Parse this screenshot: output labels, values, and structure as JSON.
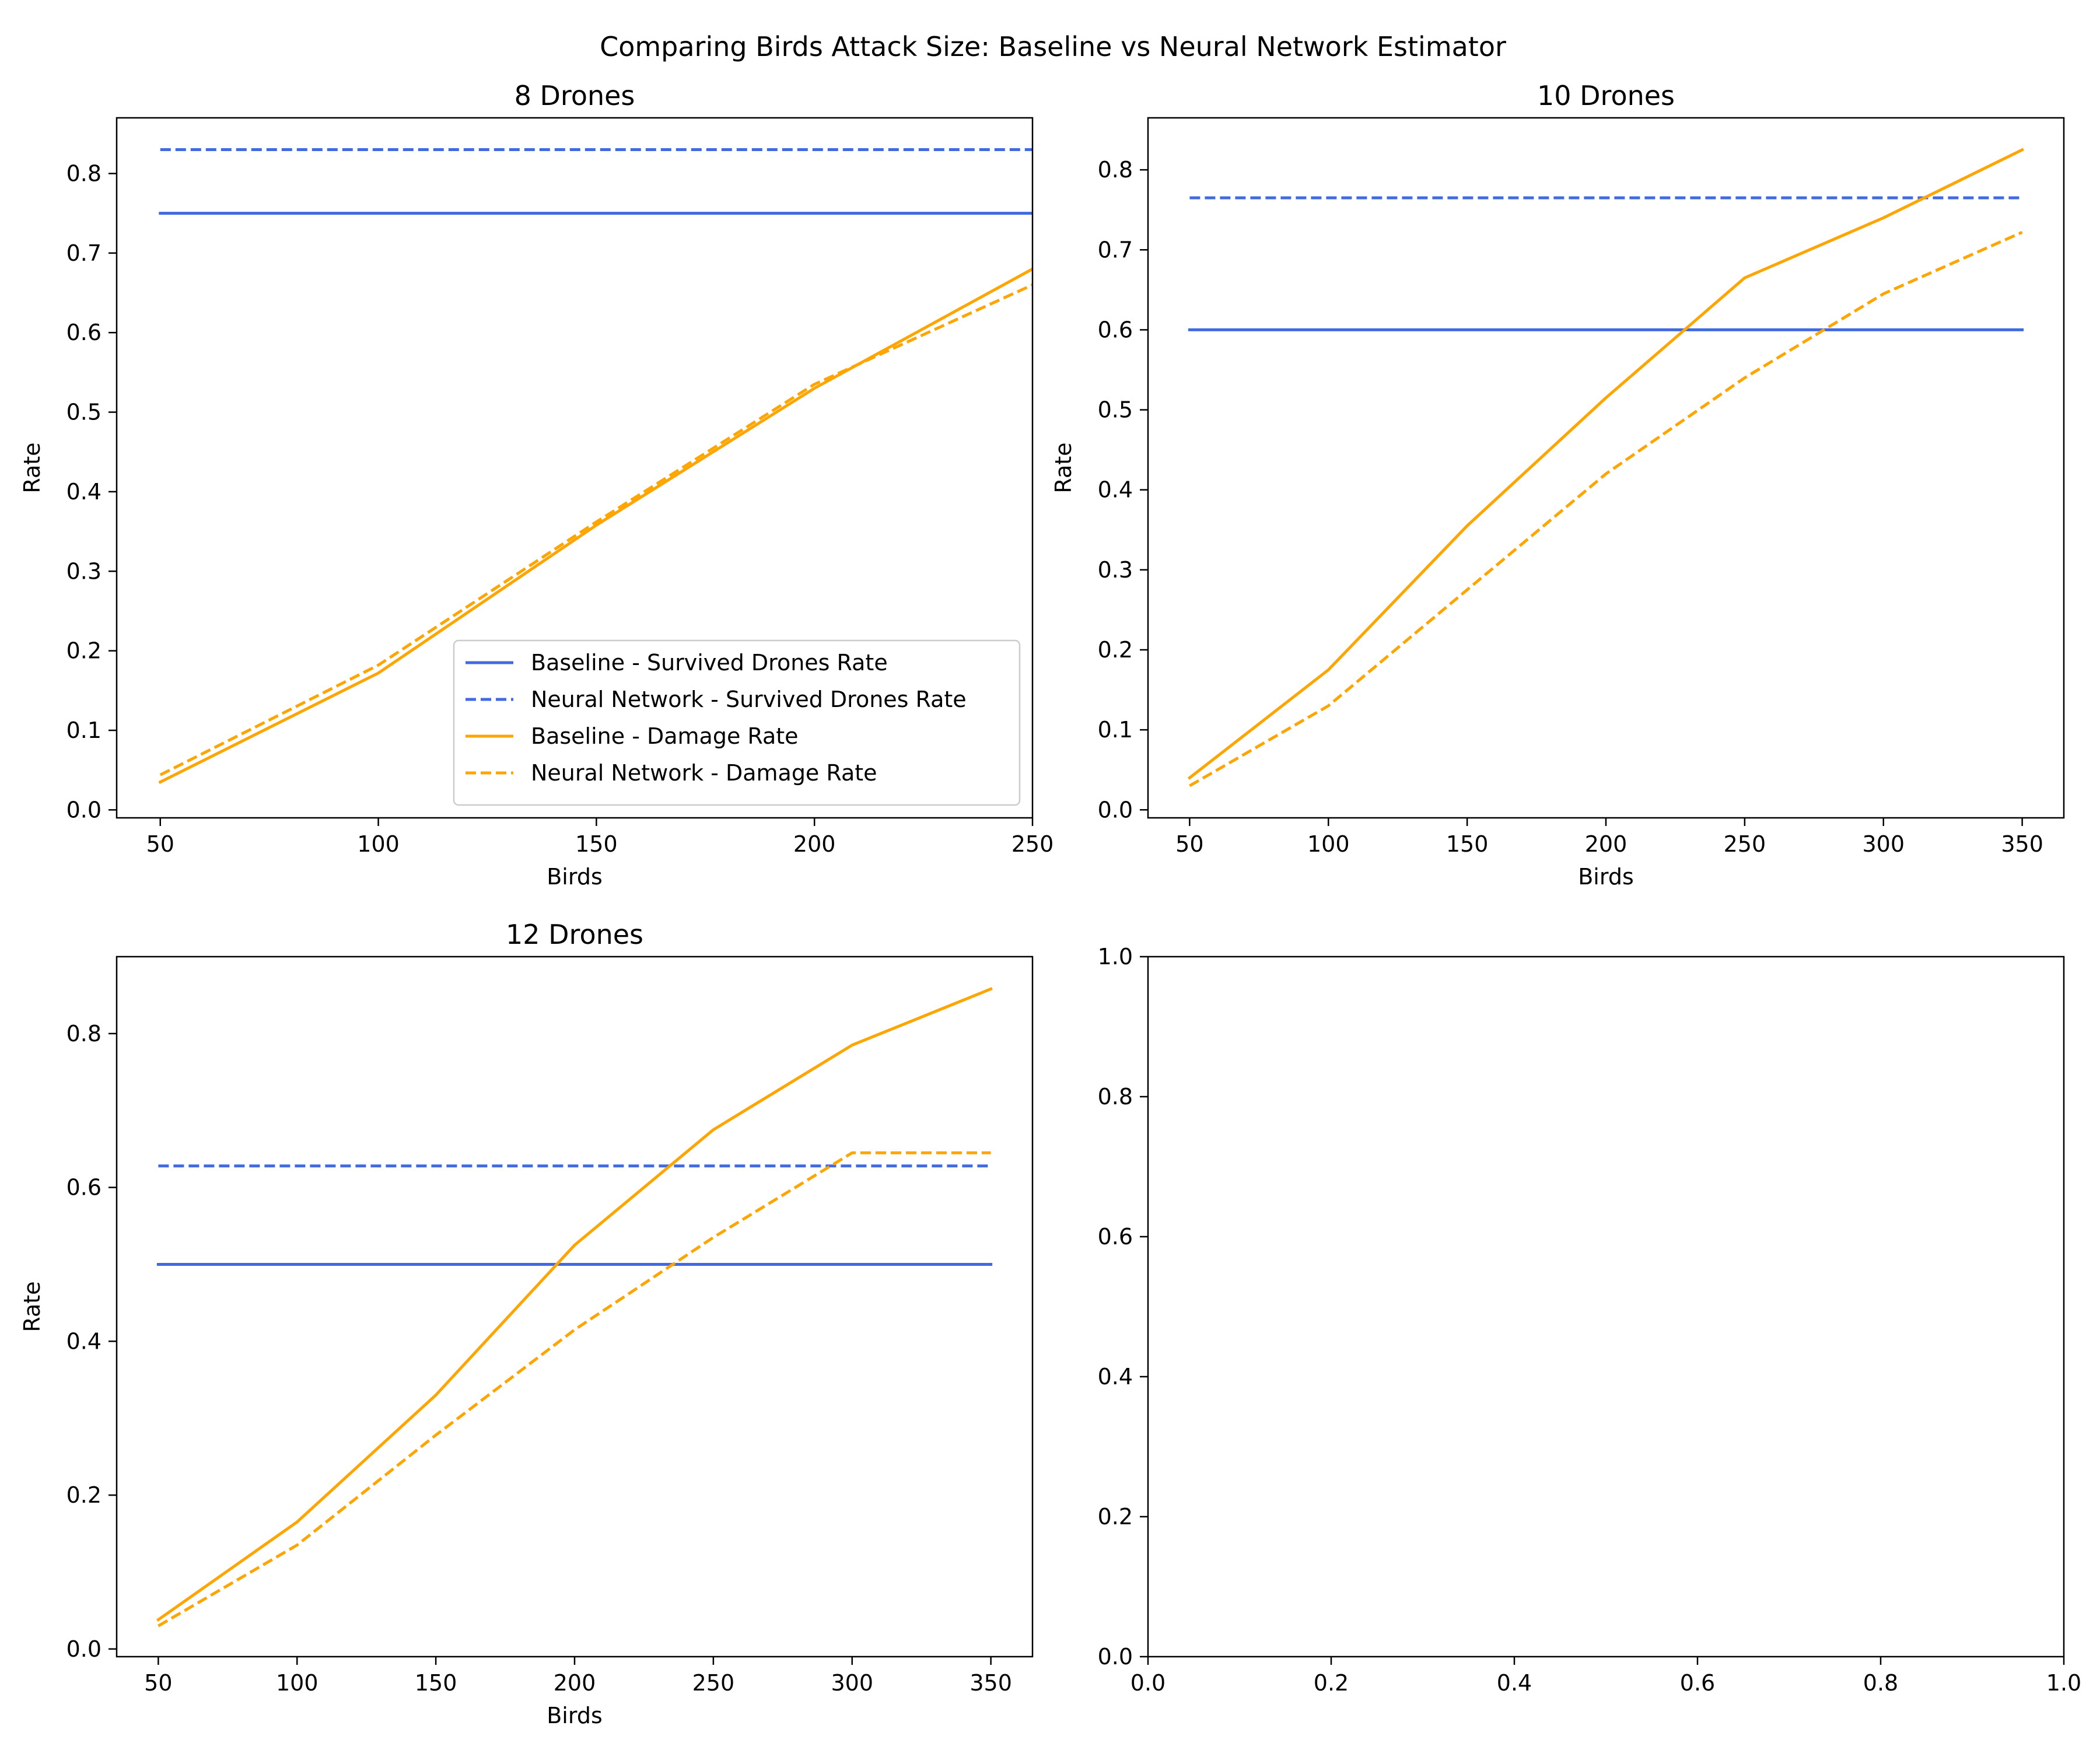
{
  "figure": {
    "suptitle": "Comparing Birds Attack Size: Baseline vs Neural Network Estimator"
  },
  "colors": {
    "baseline_survived": "#4169E1",
    "nn_survived": "#4169E1",
    "baseline_damage": "#FFA500",
    "nn_damage": "#FFA500",
    "axes": "#000000",
    "background": "#ffffff"
  },
  "chart_data": [
    {
      "type": "line",
      "title": "8 Drones",
      "xlabel": "Birds",
      "ylabel": "Rate",
      "x": [
        50,
        100,
        150,
        200,
        250
      ],
      "xlim": [
        40,
        250
      ],
      "ylim": [
        -0.01,
        0.87
      ],
      "xticks": [
        50,
        100,
        150,
        200,
        250
      ],
      "yticks": [
        0.0,
        0.1,
        0.2,
        0.3,
        0.4,
        0.5,
        0.6,
        0.7,
        0.8
      ],
      "ytick_labels": [
        "0.0",
        "0.1",
        "0.2",
        "0.3",
        "0.4",
        "0.5",
        "0.6",
        "0.7",
        "0.8"
      ],
      "grid": false,
      "legend": "lower-right",
      "series": [
        {
          "name": "Baseline - Survived Drones Rate",
          "style": "solid",
          "color_key": "baseline_survived",
          "values": [
            0.75,
            0.75,
            0.75,
            0.75,
            0.75
          ]
        },
        {
          "name": "Neural Network - Survived Drones Rate",
          "style": "dashed",
          "color_key": "nn_survived",
          "values": [
            0.83,
            0.83,
            0.83,
            0.83,
            0.83
          ]
        },
        {
          "name": "Baseline - Damage Rate",
          "style": "solid",
          "color_key": "baseline_damage",
          "values": [
            0.035,
            0.172,
            0.358,
            0.53,
            0.68
          ]
        },
        {
          "name": "Neural Network - Damage Rate",
          "style": "dashed",
          "color_key": "nn_damage",
          "values": [
            0.044,
            0.182,
            0.362,
            0.535,
            0.66
          ]
        }
      ]
    },
    {
      "type": "line",
      "title": "10 Drones",
      "xlabel": "Birds",
      "ylabel": "Rate",
      "x": [
        50,
        100,
        150,
        200,
        250,
        300,
        350
      ],
      "xlim": [
        35,
        365
      ],
      "ylim": [
        -0.01,
        0.865
      ],
      "xticks": [
        50,
        100,
        150,
        200,
        250,
        300,
        350
      ],
      "yticks": [
        0.0,
        0.1,
        0.2,
        0.3,
        0.4,
        0.5,
        0.6,
        0.7,
        0.8
      ],
      "ytick_labels": [
        "0.0",
        "0.1",
        "0.2",
        "0.3",
        "0.4",
        "0.5",
        "0.6",
        "0.7",
        "0.8"
      ],
      "grid": false,
      "legend": "none",
      "series": [
        {
          "name": "Baseline - Survived Drones Rate",
          "style": "solid",
          "color_key": "baseline_survived",
          "values": [
            0.6,
            0.6,
            0.6,
            0.6,
            0.6,
            0.6,
            0.6
          ]
        },
        {
          "name": "Neural Network - Survived Drones Rate",
          "style": "dashed",
          "color_key": "nn_survived",
          "values": [
            0.765,
            0.765,
            0.765,
            0.765,
            0.765,
            0.765,
            0.765
          ]
        },
        {
          "name": "Baseline - Damage Rate",
          "style": "solid",
          "color_key": "baseline_damage",
          "values": [
            0.04,
            0.175,
            0.355,
            0.515,
            0.665,
            0.74,
            0.825
          ]
        },
        {
          "name": "Neural Network - Damage Rate",
          "style": "dashed",
          "color_key": "nn_damage",
          "values": [
            0.03,
            0.13,
            0.275,
            0.42,
            0.54,
            0.645,
            0.722
          ]
        }
      ]
    },
    {
      "type": "line",
      "title": "12 Drones",
      "xlabel": "Birds",
      "ylabel": "Rate",
      "x": [
        50,
        100,
        150,
        200,
        250,
        300,
        350
      ],
      "xlim": [
        35,
        365
      ],
      "ylim": [
        -0.01,
        0.9
      ],
      "xticks": [
        50,
        100,
        150,
        200,
        250,
        300,
        350
      ],
      "yticks": [
        0.0,
        0.2,
        0.4,
        0.6,
        0.8
      ],
      "ytick_labels": [
        "0.0",
        "0.2",
        "0.4",
        "0.6",
        "0.8"
      ],
      "grid": false,
      "legend": "none",
      "series": [
        {
          "name": "Baseline - Survived Drones Rate",
          "style": "solid",
          "color_key": "baseline_survived",
          "values": [
            0.5,
            0.5,
            0.5,
            0.5,
            0.5,
            0.5,
            0.5
          ]
        },
        {
          "name": "Neural Network - Survived Drones Rate",
          "style": "dashed",
          "color_key": "nn_survived",
          "values": [
            0.628,
            0.628,
            0.628,
            0.628,
            0.628,
            0.628,
            0.628
          ]
        },
        {
          "name": "Baseline - Damage Rate",
          "style": "solid",
          "color_key": "baseline_damage",
          "values": [
            0.038,
            0.165,
            0.33,
            0.525,
            0.675,
            0.785,
            0.858
          ]
        },
        {
          "name": "Neural Network - Damage Rate",
          "style": "dashed",
          "color_key": "nn_damage",
          "values": [
            0.03,
            0.135,
            0.278,
            0.415,
            0.535,
            0.645,
            0.645
          ]
        }
      ]
    },
    {
      "type": "line",
      "title": "",
      "xlabel": "",
      "ylabel": "",
      "x": [],
      "xlim": [
        0,
        1
      ],
      "ylim": [
        0,
        1
      ],
      "xticks": [
        0.0,
        0.2,
        0.4,
        0.6,
        0.8,
        1.0
      ],
      "xtick_labels": [
        "0.0",
        "0.2",
        "0.4",
        "0.6",
        "0.8",
        "1.0"
      ],
      "yticks": [
        0.0,
        0.2,
        0.4,
        0.6,
        0.8,
        1.0
      ],
      "ytick_labels": [
        "0.0",
        "0.2",
        "0.4",
        "0.6",
        "0.8",
        "1.0"
      ],
      "grid": false,
      "legend": "none",
      "series": []
    }
  ]
}
